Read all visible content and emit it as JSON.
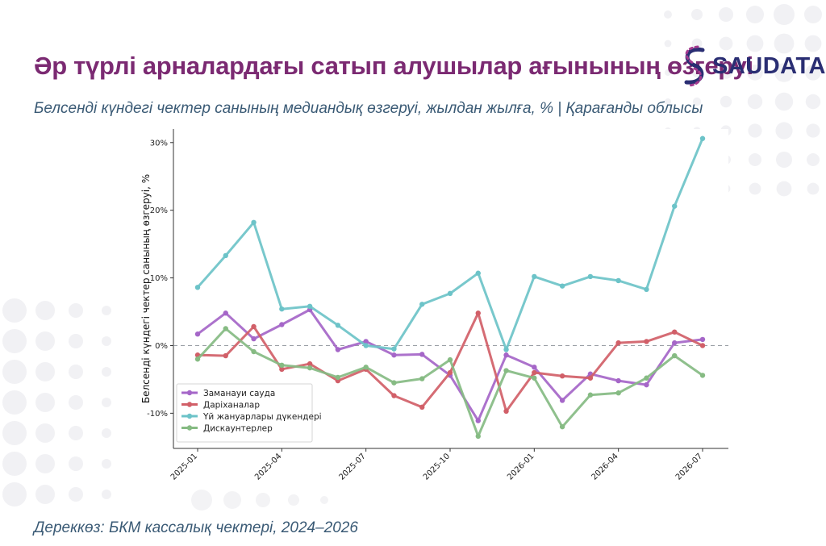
{
  "header": {
    "title": "Әр түрлі арналардағы сатып алушылар ағынының өзгеруі",
    "subtitle": "Белсенді күндегі чектер санының медиандық өзгеруі, жылдан жылға, % | Қарағанды облысы",
    "logo_text": "SAUDATA"
  },
  "footer": {
    "source": "Дереккөз: БКМ кассалық чектері, 2024–2026"
  },
  "colors": {
    "title": "#7b2a72",
    "subtitle": "#3a5a75",
    "logo_dark": "#2a2e73",
    "logo_accent": "#a33a8f"
  },
  "chart_data": {
    "type": "line",
    "title": "",
    "xlabel": "",
    "ylabel": "Белсенді күндегі чектер санының өзгеруі, %",
    "x": [
      "2025-01",
      "2025-02",
      "2025-03",
      "2025-04",
      "2025-05",
      "2025-06",
      "2025-07",
      "2025-08",
      "2025-09",
      "2025-10",
      "2025-11",
      "2025-12",
      "2026-01",
      "2026-02",
      "2026-03",
      "2026-04",
      "2026-05",
      "2026-06",
      "2026-07"
    ],
    "x_tick_labels": [
      "2025-01",
      "2025-04",
      "2025-07",
      "2025-10",
      "2026-01",
      "2026-04",
      "2026-07"
    ],
    "x_tick_indices": [
      0,
      3,
      6,
      9,
      12,
      15,
      18
    ],
    "y_ticks": [
      -10,
      0,
      10,
      20,
      30
    ],
    "y_tick_labels": [
      "-10%",
      "0%",
      "10%",
      "20%",
      "30%"
    ],
    "ylim": [
      -15.2,
      32
    ],
    "zero_line": true,
    "grid": false,
    "legend_position": "bottom-left",
    "series": [
      {
        "name": "Заманауи сауда",
        "color": "#a566c8",
        "values": [
          1.7,
          4.8,
          1.0,
          3.1,
          5.3,
          -0.6,
          0.6,
          -1.4,
          -1.3,
          -4.4,
          -11.1,
          -1.4,
          -3.2,
          -8.1,
          -4.2,
          -5.2,
          -5.8,
          0.4,
          0.9
        ]
      },
      {
        "name": "Даріханалар",
        "color": "#d15f68",
        "values": [
          -1.4,
          -1.5,
          2.8,
          -3.5,
          -2.7,
          -5.2,
          -3.5,
          -7.4,
          -9.1,
          -4.0,
          4.8,
          -9.7,
          -4.0,
          -4.5,
          -4.8,
          0.4,
          0.6,
          2.0,
          0.0
        ]
      },
      {
        "name": "Үй жануарлары дүкендері",
        "color": "#6cc3c8",
        "values": [
          8.6,
          13.3,
          18.2,
          5.4,
          5.8,
          3.0,
          0.0,
          -0.5,
          6.1,
          7.7,
          10.7,
          -0.6,
          10.2,
          8.8,
          10.2,
          9.6,
          8.3,
          20.6,
          30.6
        ]
      },
      {
        "name": "Дискаунтерлер",
        "color": "#86bb83",
        "values": [
          -2.0,
          2.5,
          -0.9,
          -2.9,
          -3.3,
          -4.7,
          -3.2,
          -5.5,
          -4.9,
          -2.1,
          -13.4,
          -3.7,
          -4.8,
          -12.0,
          -7.3,
          -7.0,
          -4.8,
          -1.5,
          -4.4
        ]
      }
    ]
  }
}
